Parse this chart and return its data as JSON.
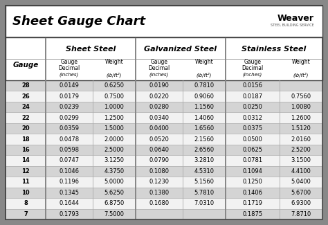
{
  "title": "Sheet Gauge Chart",
  "bg_outer": "#888888",
  "bg_white": "#ffffff",
  "bg_header": "#ffffff",
  "row_bg_dark": "#d8d8d8",
  "row_bg_light": "#f0f0f0",
  "gauges": [
    28,
    26,
    24,
    22,
    20,
    18,
    16,
    14,
    12,
    11,
    10,
    8,
    7
  ],
  "sheet_steel_decimal": [
    "0.0149",
    "0.0179",
    "0.0239",
    "0.0299",
    "0.0359",
    "0.0478",
    "0.0598",
    "0.0747",
    "0.1046",
    "0.1196",
    "0.1345",
    "0.1644",
    "0.1793"
  ],
  "sheet_steel_weight": [
    "0.6250",
    "0.7500",
    "1.0000",
    "1.2500",
    "1.5000",
    "2.0000",
    "2.5000",
    "3.1250",
    "4.3750",
    "5.0000",
    "5.6250",
    "6.8750",
    "7.5000"
  ],
  "galv_steel_decimal": [
    "0.0190",
    "0.0220",
    "0.0280",
    "0.0340",
    "0.0400",
    "0.0520",
    "0.0640",
    "0.0790",
    "0.1080",
    "0.1230",
    "0.1380",
    "0.1680",
    ""
  ],
  "galv_steel_weight": [
    "0.7810",
    "0.9060",
    "1.1560",
    "1.4060",
    "1.6560",
    "2.1560",
    "2.6560",
    "3.2810",
    "4.5310",
    "5.1560",
    "5.7810",
    "7.0310",
    ""
  ],
  "stainless_decimal": [
    "0.0156",
    "0.0187",
    "0.0250",
    "0.0312",
    "0.0375",
    "0.0500",
    "0.0625",
    "0.0781",
    "0.1094",
    "0.1250",
    "0.1406",
    "0.1719",
    "0.1875"
  ],
  "stainless_weight": [
    "",
    "0.7560",
    "1.0080",
    "1.2600",
    "1.5120",
    "2.0160",
    "2.5200",
    "3.1500",
    "4.4100",
    "5.0400",
    "5.6700",
    "6.9300",
    "7.8710"
  ]
}
